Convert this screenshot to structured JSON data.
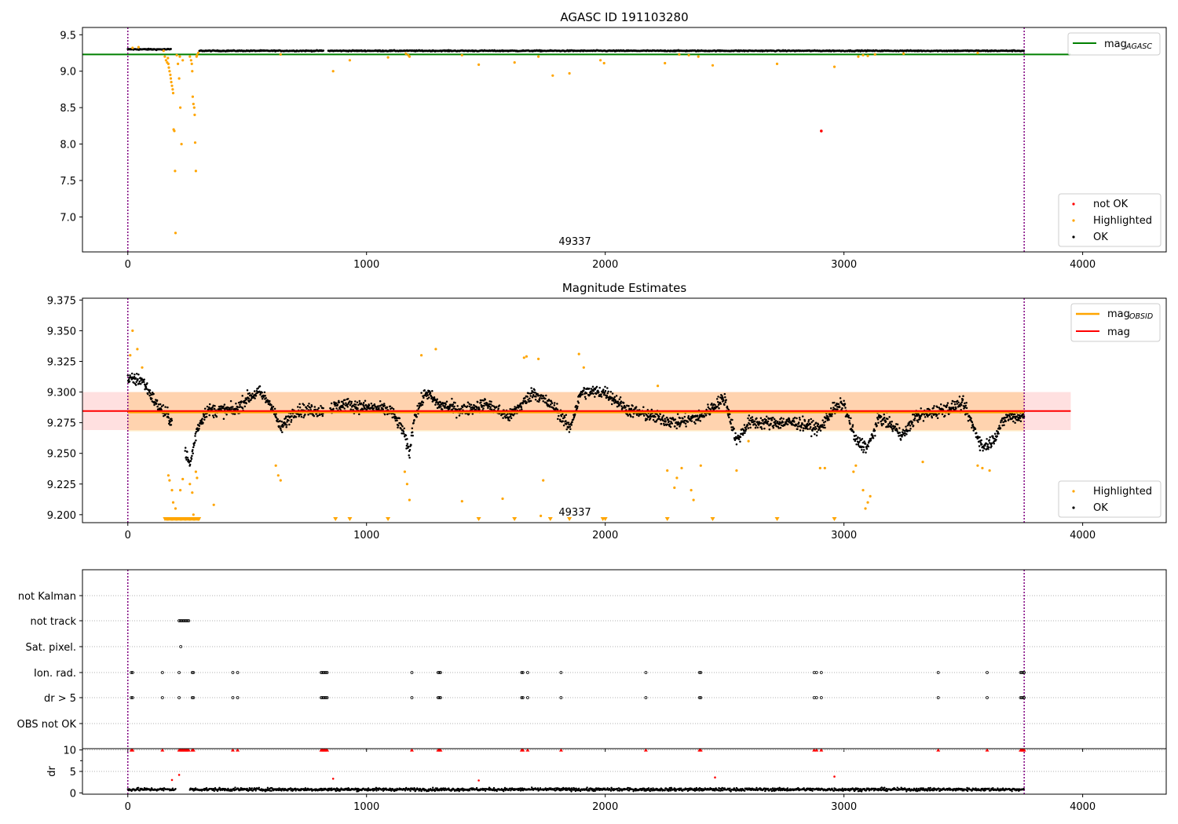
{
  "chart_data": [
    {
      "type": "scatter",
      "title": "AGASC ID 191103280",
      "xlim": [
        -190,
        4350
      ],
      "ylim": [
        6.52,
        9.6
      ],
      "xticks": [
        "0",
        "1000",
        "2000",
        "3000",
        "4000"
      ],
      "yticks": [
        "7.0",
        "7.5",
        "8.0",
        "8.5",
        "9.0",
        "9.5"
      ],
      "obsid_label": "49337",
      "obsid_bounds": [
        0,
        3755
      ],
      "legend_upper": {
        "placement": "top-right",
        "entries": [
          {
            "name": "mag",
            "sub": "AGASC",
            "color": "#008000"
          }
        ]
      },
      "legend_lower": {
        "placement": "bottom-right",
        "entries": [
          {
            "name": "not OK",
            "color": "#ff0000"
          },
          {
            "name": "Highlighted",
            "color": "#ffa500"
          },
          {
            "name": "OK",
            "color": "#000000"
          }
        ]
      },
      "agasc_mag": 9.23,
      "ok_series": {
        "name": "OK",
        "color": "#000000",
        "segments": [
          [
            0,
            180,
            9.3
          ],
          [
            300,
            820,
            9.28
          ],
          [
            840,
            3755,
            9.28
          ]
        ]
      },
      "highlighted": [
        [
          20,
          9.32
        ],
        [
          45,
          9.33
        ],
        [
          150,
          9.28
        ],
        [
          155,
          9.2
        ],
        [
          160,
          9.15
        ],
        [
          165,
          9.12
        ],
        [
          168,
          9.18
        ],
        [
          170,
          9.1
        ],
        [
          172,
          9.05
        ],
        [
          175,
          9.0
        ],
        [
          178,
          8.95
        ],
        [
          180,
          8.9
        ],
        [
          182,
          8.85
        ],
        [
          185,
          8.8
        ],
        [
          188,
          8.75
        ],
        [
          190,
          8.7
        ],
        [
          192,
          8.2
        ],
        [
          195,
          8.18
        ],
        [
          198,
          7.63
        ],
        [
          200,
          6.78
        ],
        [
          205,
          9.22
        ],
        [
          210,
          9.1
        ],
        [
          215,
          8.9
        ],
        [
          218,
          9.2
        ],
        [
          220,
          8.5
        ],
        [
          225,
          8.0
        ],
        [
          230,
          9.15
        ],
        [
          260,
          9.2
        ],
        [
          265,
          9.15
        ],
        [
          268,
          9.1
        ],
        [
          270,
          9.0
        ],
        [
          272,
          8.65
        ],
        [
          275,
          8.55
        ],
        [
          278,
          8.5
        ],
        [
          280,
          8.4
        ],
        [
          282,
          8.02
        ],
        [
          285,
          7.63
        ],
        [
          288,
          9.2
        ],
        [
          290,
          9.22
        ],
        [
          295,
          9.25
        ],
        [
          640,
          9.23
        ],
        [
          860,
          9.0
        ],
        [
          930,
          9.15
        ],
        [
          1090,
          9.19
        ],
        [
          1165,
          9.24
        ],
        [
          1175,
          9.22
        ],
        [
          1180,
          9.2
        ],
        [
          1400,
          9.22
        ],
        [
          1470,
          9.09
        ],
        [
          1620,
          9.12
        ],
        [
          1720,
          9.2
        ],
        [
          1780,
          8.94
        ],
        [
          1850,
          8.97
        ],
        [
          1980,
          9.15
        ],
        [
          1995,
          9.11
        ],
        [
          2250,
          9.11
        ],
        [
          2310,
          9.23
        ],
        [
          2350,
          9.22
        ],
        [
          2390,
          9.2
        ],
        [
          2450,
          9.08
        ],
        [
          2720,
          9.1
        ],
        [
          2960,
          9.06
        ],
        [
          3060,
          9.2
        ],
        [
          3080,
          9.22
        ],
        [
          3100,
          9.21
        ],
        [
          3130,
          9.23
        ],
        [
          3250,
          9.24
        ],
        [
          3560,
          9.25
        ]
      ],
      "not_ok": [
        [
          2905,
          8.18
        ]
      ]
    },
    {
      "type": "scatter",
      "title": "Magnitude Estimates",
      "xlim": [
        -190,
        4350
      ],
      "ylim": [
        9.1935,
        9.3765
      ],
      "xticks": [
        "0",
        "1000",
        "2000",
        "3000",
        "4000"
      ],
      "yticks": [
        "9.200",
        "9.225",
        "9.250",
        "9.275",
        "9.300",
        "9.325",
        "9.350",
        "9.375"
      ],
      "obsid_label": "49337",
      "legend_upper": {
        "placement": "top-right",
        "entries": [
          {
            "name": "mag",
            "sub": "OBSID",
            "color": "#ffa500"
          },
          {
            "name": "mag",
            "color": "#ff0000"
          }
        ]
      },
      "legend_lower": {
        "placement": "bottom-right",
        "entries": [
          {
            "name": "Highlighted",
            "color": "#ffa500"
          },
          {
            "name": "OK",
            "color": "#000000"
          }
        ]
      },
      "mag": 9.2845,
      "mag_band": [
        9.269,
        9.3
      ],
      "obsid_mag": 9.2835,
      "obsid_band": [
        9.268,
        9.3
      ],
      "ok_profile": [
        [
          0,
          9.31
        ],
        [
          60,
          9.31
        ],
        [
          120,
          9.29
        ],
        [
          170,
          9.28
        ],
        [
          220,
          9.265
        ],
        [
          260,
          9.24
        ],
        [
          290,
          9.27
        ],
        [
          330,
          9.285
        ],
        [
          450,
          9.285
        ],
        [
          500,
          9.295
        ],
        [
          550,
          9.3
        ],
        [
          600,
          9.29
        ],
        [
          640,
          9.27
        ],
        [
          700,
          9.285
        ],
        [
          820,
          9.285
        ],
        [
          900,
          9.29
        ],
        [
          1100,
          9.285
        ],
        [
          1150,
          9.27
        ],
        [
          1180,
          9.25
        ],
        [
          1200,
          9.28
        ],
        [
          1250,
          9.3
        ],
        [
          1300,
          9.29
        ],
        [
          1400,
          9.285
        ],
        [
          1500,
          9.29
        ],
        [
          1600,
          9.28
        ],
        [
          1700,
          9.3
        ],
        [
          1800,
          9.285
        ],
        [
          1850,
          9.27
        ],
        [
          1900,
          9.3
        ],
        [
          2000,
          9.3
        ],
        [
          2100,
          9.285
        ],
        [
          2300,
          9.275
        ],
        [
          2400,
          9.28
        ],
        [
          2500,
          9.295
        ],
        [
          2550,
          9.26
        ],
        [
          2600,
          9.275
        ],
        [
          2800,
          9.275
        ],
        [
          2900,
          9.27
        ],
        [
          2950,
          9.285
        ],
        [
          3000,
          9.29
        ],
        [
          3050,
          9.26
        ],
        [
          3100,
          9.255
        ],
        [
          3150,
          9.28
        ],
        [
          3250,
          9.265
        ],
        [
          3300,
          9.28
        ],
        [
          3400,
          9.285
        ],
        [
          3500,
          9.29
        ],
        [
          3580,
          9.255
        ],
        [
          3620,
          9.26
        ],
        [
          3680,
          9.28
        ],
        [
          3755,
          9.28
        ]
      ],
      "highlighted": [
        [
          10,
          9.33
        ],
        [
          20,
          9.35
        ],
        [
          40,
          9.335
        ],
        [
          60,
          9.32
        ],
        [
          170,
          9.232
        ],
        [
          175,
          9.228
        ],
        [
          185,
          9.22
        ],
        [
          190,
          9.21
        ],
        [
          200,
          9.205
        ],
        [
          220,
          9.22
        ],
        [
          230,
          9.229
        ],
        [
          260,
          9.225
        ],
        [
          270,
          9.218
        ],
        [
          275,
          9.2
        ],
        [
          285,
          9.235
        ],
        [
          290,
          9.23
        ],
        [
          360,
          9.208
        ],
        [
          620,
          9.24
        ],
        [
          630,
          9.232
        ],
        [
          640,
          9.228
        ],
        [
          1160,
          9.235
        ],
        [
          1170,
          9.225
        ],
        [
          1180,
          9.212
        ],
        [
          1230,
          9.33
        ],
        [
          1290,
          9.335
        ],
        [
          1400,
          9.211
        ],
        [
          1570,
          9.213
        ],
        [
          1660,
          9.328
        ],
        [
          1670,
          9.329
        ],
        [
          1720,
          9.327
        ],
        [
          1740,
          9.228
        ],
        [
          1730,
          9.199
        ],
        [
          1890,
          9.331
        ],
        [
          1910,
          9.32
        ],
        [
          2220,
          9.305
        ],
        [
          2260,
          9.236
        ],
        [
          2290,
          9.222
        ],
        [
          2300,
          9.23
        ],
        [
          2320,
          9.238
        ],
        [
          2360,
          9.22
        ],
        [
          2370,
          9.212
        ],
        [
          2400,
          9.24
        ],
        [
          2550,
          9.236
        ],
        [
          2600,
          9.26
        ],
        [
          2900,
          9.238
        ],
        [
          2920,
          9.238
        ],
        [
          3040,
          9.235
        ],
        [
          3050,
          9.24
        ],
        [
          3080,
          9.22
        ],
        [
          3090,
          9.205
        ],
        [
          3100,
          9.21
        ],
        [
          3110,
          9.215
        ],
        [
          3330,
          9.243
        ],
        [
          3560,
          9.24
        ],
        [
          3580,
          9.238
        ],
        [
          3610,
          9.236
        ]
      ],
      "floor_markers": [
        870,
        930,
        1090,
        1470,
        1620,
        1770,
        1850,
        1990,
        2000,
        2260,
        2450,
        2720,
        2960
      ],
      "floor_cluster": [
        155,
        300
      ]
    },
    {
      "type": "scatter",
      "categories": [
        "not Kalman",
        "not track",
        "Sat. pixel.",
        "Ion. rad.",
        "dr > 5",
        "OBS not OK"
      ],
      "xlim": [
        -190,
        4350
      ],
      "xticks": [
        "0",
        "1000",
        "2000",
        "3000",
        "4000"
      ],
      "flag_events": {
        "not track": [
          215,
          220,
          225,
          230,
          235,
          240,
          245,
          250,
          255
        ],
        "Sat. pixel.": [
          222
        ],
        "Ion. rad.": [
          15,
          20,
          145,
          215,
          270,
          275,
          440,
          460,
          810,
          815,
          820,
          825,
          830,
          835,
          1190,
          1300,
          1305,
          1310,
          1650,
          1655,
          1675,
          1815,
          2170,
          2395,
          2400,
          2875,
          2885,
          2905,
          3395,
          3600,
          3740,
          3745,
          3750,
          3755
        ],
        "dr > 5": [
          15,
          20,
          145,
          215,
          270,
          275,
          440,
          460,
          810,
          815,
          820,
          825,
          830,
          835,
          1190,
          1300,
          1305,
          1310,
          1650,
          1655,
          1675,
          1815,
          2170,
          2395,
          2400,
          2875,
          2885,
          2905,
          3395,
          3600,
          3740,
          3745,
          3750,
          3755
        ]
      }
    },
    {
      "type": "scatter",
      "ylabel": "dr",
      "xlim": [
        -190,
        4350
      ],
      "ylim": [
        -0.3,
        10.3
      ],
      "yticks": [
        "0",
        "5",
        "10"
      ],
      "xticks": [
        "0",
        "1000",
        "2000",
        "3000",
        "4000"
      ],
      "clipped_at": 10,
      "clipped": [
        15,
        20,
        145,
        215,
        220,
        225,
        230,
        235,
        240,
        245,
        250,
        255,
        270,
        275,
        440,
        460,
        810,
        815,
        820,
        825,
        830,
        835,
        1190,
        1300,
        1305,
        1310,
        1650,
        1655,
        1675,
        1815,
        2170,
        2395,
        2400,
        2875,
        2885,
        2905,
        3395,
        3600,
        3740,
        3745,
        3750,
        3755
      ],
      "outliers": [
        [
          185,
          3.0
        ],
        [
          215,
          4.2
        ],
        [
          860,
          3.3
        ],
        [
          1470,
          2.9
        ],
        [
          2460,
          3.6
        ],
        [
          2960,
          3.8
        ]
      ],
      "ok_level": 0.8
    }
  ]
}
